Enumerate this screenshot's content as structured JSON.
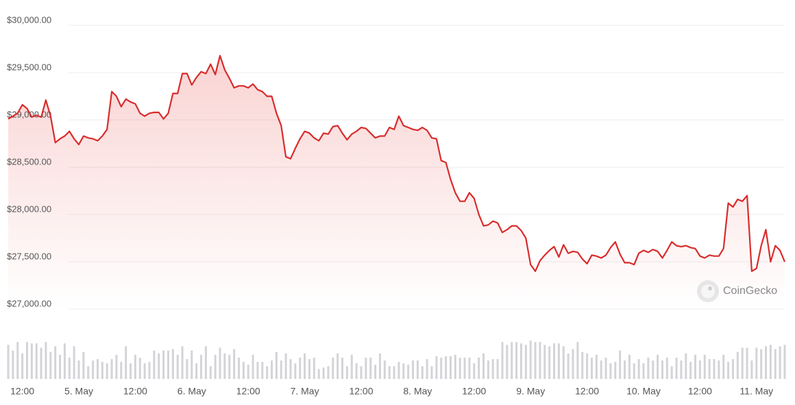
{
  "chart_data": {
    "type": "line",
    "watermark": "CoinGecko",
    "color": "#d92b2b",
    "volume_color": "#d3d3d8",
    "grid": true,
    "ylim": [
      27000,
      30000
    ],
    "yticks": [
      {
        "value": 27000,
        "label": "$27,000.00"
      },
      {
        "value": 27500,
        "label": "$27,500.00"
      },
      {
        "value": 28000,
        "label": "$28,000.00"
      },
      {
        "value": 28500,
        "label": "$28,500.00"
      },
      {
        "value": 29000,
        "label": "$29,000.00"
      },
      {
        "value": 29500,
        "label": "$29,500.00"
      },
      {
        "value": 30000,
        "label": "$30,000.00"
      }
    ],
    "categories": [
      null,
      null,
      null,
      "12:00",
      null,
      null,
      null,
      null,
      null,
      null,
      null,
      null,
      null,
      null,
      null,
      "5. May",
      null,
      null,
      null,
      null,
      null,
      null,
      null,
      null,
      null,
      null,
      null,
      "12:00",
      null,
      null,
      null,
      null,
      null,
      null,
      null,
      null,
      null,
      null,
      null,
      "6. May",
      null,
      null,
      null,
      null,
      null,
      null,
      null,
      null,
      null,
      null,
      null,
      "12:00",
      null,
      null,
      null,
      null,
      null,
      null,
      null,
      null,
      null,
      null,
      null,
      "7. May",
      null,
      null,
      null,
      null,
      null,
      null,
      null,
      null,
      null,
      null,
      null,
      "12:00",
      null,
      null,
      null,
      null,
      null,
      null,
      null,
      null,
      null,
      null,
      null,
      "8. May",
      null,
      null,
      null,
      null,
      null,
      null,
      null,
      null,
      null,
      null,
      null,
      "12:00",
      null,
      null,
      null,
      null,
      null,
      null,
      null,
      null,
      null,
      null,
      null,
      "9. May",
      null,
      null,
      null,
      null,
      null,
      null,
      null,
      null,
      null,
      null,
      null,
      "12:00",
      null,
      null,
      null,
      null,
      null,
      null,
      null,
      null,
      null,
      null,
      null,
      "10. May",
      null,
      null,
      null,
      null,
      null,
      null,
      null,
      null,
      null,
      null,
      null,
      "12:00",
      null,
      null,
      null,
      null,
      null,
      null,
      null,
      null,
      null,
      null,
      null,
      "11. May",
      null,
      null,
      null,
      null,
      null,
      null
    ],
    "values": [
      29010,
      29040,
      29070,
      29160,
      29120,
      29030,
      29050,
      29030,
      29210,
      29040,
      28760,
      28800,
      28830,
      28880,
      28800,
      28740,
      28830,
      28810,
      28800,
      28780,
      28830,
      28900,
      29300,
      29250,
      29140,
      29220,
      29190,
      29170,
      29070,
      29040,
      29070,
      29080,
      29080,
      29010,
      29070,
      29280,
      29280,
      29490,
      29490,
      29370,
      29450,
      29510,
      29490,
      29590,
      29480,
      29680,
      29530,
      29440,
      29340,
      29360,
      29360,
      29340,
      29380,
      29320,
      29300,
      29250,
      29250,
      29070,
      28940,
      28610,
      28590,
      28700,
      28800,
      28880,
      28860,
      28810,
      28780,
      28860,
      28850,
      28930,
      28940,
      28860,
      28790,
      28850,
      28880,
      28920,
      28910,
      28860,
      28810,
      28830,
      28830,
      28920,
      28900,
      29040,
      28940,
      28920,
      28900,
      28890,
      28920,
      28890,
      28810,
      28800,
      28570,
      28550,
      28370,
      28230,
      28140,
      28140,
      28230,
      28170,
      28000,
      27880,
      27890,
      27930,
      27910,
      27810,
      27840,
      27880,
      27880,
      27830,
      27750,
      27470,
      27400,
      27510,
      27570,
      27620,
      27660,
      27550,
      27680,
      27590,
      27610,
      27600,
      27530,
      27480,
      27570,
      27560,
      27540,
      27570,
      27650,
      27710,
      27580,
      27490,
      27490,
      27470,
      27590,
      27620,
      27600,
      27630,
      27610,
      27540,
      27620,
      27710,
      27670,
      27660,
      27670,
      27650,
      27640,
      27560,
      27540,
      27570,
      27560,
      27560,
      27640,
      28120,
      28080,
      28160,
      28140,
      28200,
      27400,
      27430,
      27670,
      27840,
      27500,
      27670,
      27620,
      27500
    ],
    "volumes": [
      48,
      40,
      52,
      36,
      52,
      50,
      50,
      44,
      52,
      38,
      46,
      34,
      50,
      30,
      46,
      26,
      38,
      18,
      26,
      28,
      24,
      22,
      28,
      34,
      24,
      46,
      22,
      34,
      30,
      22,
      24,
      40,
      36,
      40,
      40,
      42,
      34,
      46,
      28,
      40,
      22,
      34,
      46,
      18,
      34,
      44,
      36,
      34,
      42,
      30,
      24,
      20,
      34,
      24,
      24,
      18,
      26,
      38,
      26,
      36,
      28,
      22,
      30,
      36,
      28,
      30,
      14,
      16,
      18,
      30,
      36,
      30,
      18,
      34,
      22,
      18,
      30,
      30,
      20,
      36,
      26,
      18,
      18,
      24,
      22,
      20,
      26,
      26,
      18,
      28,
      18,
      32,
      30,
      32,
      32,
      34,
      30,
      30,
      30,
      22,
      30,
      36,
      26,
      28,
      28,
      52,
      48,
      52,
      52,
      50,
      48,
      54,
      52,
      52,
      48,
      46,
      50,
      50,
      46,
      36,
      42,
      52,
      38,
      36,
      30,
      34,
      26,
      30,
      22,
      24,
      40,
      26,
      34,
      22,
      28,
      22,
      30,
      26,
      34,
      26,
      30,
      18,
      30,
      26,
      36,
      24,
      34,
      26,
      34,
      28,
      28,
      26,
      34,
      24,
      28,
      38,
      44,
      44,
      26,
      44,
      42,
      46,
      48,
      42,
      46,
      48
    ]
  }
}
